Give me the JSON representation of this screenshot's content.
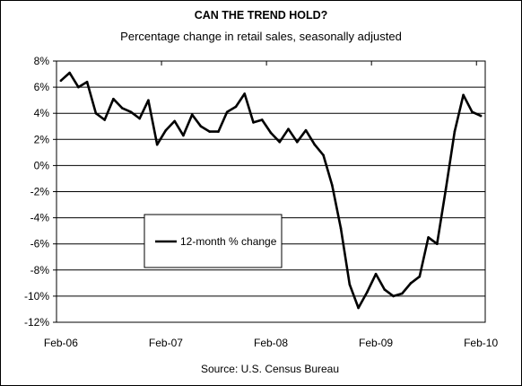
{
  "chart_data": {
    "type": "line",
    "title": "CAN THE TREND HOLD?",
    "subtitle": "Percentage change in retail sales, seasonally adjusted",
    "xlabel": "",
    "ylabel": "",
    "source": "Source: U.S. Census Bureau",
    "x_tick_labels": [
      "Feb-06",
      "Feb-07",
      "Feb-08",
      "Feb-09",
      "Feb-10"
    ],
    "y_tick_labels": [
      "8%",
      "6%",
      "4%",
      "2%",
      "0%",
      "-2%",
      "-4%",
      "-6%",
      "-8%",
      "-10%",
      "-12%"
    ],
    "ylim": [
      -12,
      8
    ],
    "y_ticks": [
      8,
      6,
      4,
      2,
      0,
      -2,
      -4,
      -6,
      -8,
      -10,
      -12
    ],
    "x_range_months": [
      "Feb-06",
      "Feb-10"
    ],
    "grid": "horizontal",
    "legend_position": "lower-left",
    "series": [
      {
        "name": "12-month % change",
        "color": "#000000",
        "x": [
          "Feb-06",
          "Mar-06",
          "Apr-06",
          "May-06",
          "Jun-06",
          "Jul-06",
          "Aug-06",
          "Sep-06",
          "Oct-06",
          "Nov-06",
          "Dec-06",
          "Jan-07",
          "Feb-07",
          "Mar-07",
          "Apr-07",
          "May-07",
          "Jun-07",
          "Jul-07",
          "Aug-07",
          "Sep-07",
          "Oct-07",
          "Nov-07",
          "Dec-07",
          "Jan-08",
          "Feb-08",
          "Mar-08",
          "Apr-08",
          "May-08",
          "Jun-08",
          "Jul-08",
          "Aug-08",
          "Sep-08",
          "Oct-08",
          "Nov-08",
          "Dec-08",
          "Jan-09",
          "Feb-09",
          "Mar-09",
          "Apr-09",
          "May-09",
          "Jun-09",
          "Jul-09",
          "Aug-09",
          "Sep-09",
          "Oct-09",
          "Nov-09",
          "Dec-09",
          "Jan-10",
          "Feb-10"
        ],
        "values": [
          6.5,
          7.1,
          6.0,
          6.4,
          4.0,
          3.5,
          5.1,
          4.4,
          4.1,
          3.6,
          5.0,
          1.6,
          2.7,
          3.4,
          2.3,
          3.9,
          3.0,
          2.6,
          2.6,
          4.1,
          4.5,
          5.5,
          3.3,
          3.5,
          2.5,
          1.8,
          2.8,
          1.8,
          2.7,
          1.6,
          0.8,
          -1.5,
          -4.8,
          -9.1,
          -10.9,
          -9.7,
          -8.3,
          -9.5,
          -10.0,
          -9.8,
          -9.0,
          -8.5,
          -5.5,
          -6.0,
          -1.8,
          2.6,
          5.4,
          4.1,
          3.8
        ]
      }
    ]
  }
}
